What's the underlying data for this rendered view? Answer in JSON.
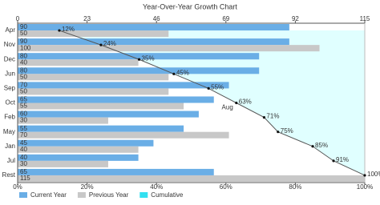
{
  "chart_data": {
    "type": "bar",
    "orientation": "horizontal",
    "title": "Year-Over-Year Growth Chart",
    "categories": [
      "Apr",
      "Nov",
      "Dec",
      "Jun",
      "Sep",
      "Oct",
      "Feb",
      "May",
      "Jan",
      "Jul",
      "Rest"
    ],
    "series": [
      {
        "name": "Current Year",
        "color": "#6aaee6",
        "values": [
          90,
          90,
          80,
          80,
          70,
          65,
          60,
          55,
          45,
          40,
          65
        ]
      },
      {
        "name": "Previous Year",
        "color": "#c8c8c8",
        "values": [
          50,
          100,
          40,
          50,
          50,
          55,
          30,
          70,
          40,
          30,
          115
        ]
      },
      {
        "name": "Cumulative",
        "type": "line",
        "axis": "x2",
        "color": "#555555",
        "fill": "#e0ffff",
        "legend_color": "#33e0f0",
        "values": [
          12,
          24,
          35,
          45,
          55,
          63,
          71,
          75,
          85,
          91,
          100
        ],
        "value_labels": [
          "12%",
          "24%",
          "35%",
          "45%",
          "55%",
          "63%",
          "71%",
          "75%",
          "85%",
          "91%",
          "100%"
        ]
      }
    ],
    "annotation": "Aug",
    "xlim": [
      0,
      115
    ],
    "xticks": [
      0,
      23,
      46,
      69,
      92,
      115
    ],
    "x2lim": [
      0,
      100
    ],
    "x2ticks": [
      {
        "value": 0,
        "label": "0%"
      },
      {
        "value": 20,
        "label": "20%"
      },
      {
        "value": 40,
        "label": "40%"
      },
      {
        "value": 60,
        "label": "60%"
      },
      {
        "value": 80,
        "label": "80%"
      },
      {
        "value": 100,
        "label": "100%"
      }
    ],
    "legend": "bottom-left"
  }
}
